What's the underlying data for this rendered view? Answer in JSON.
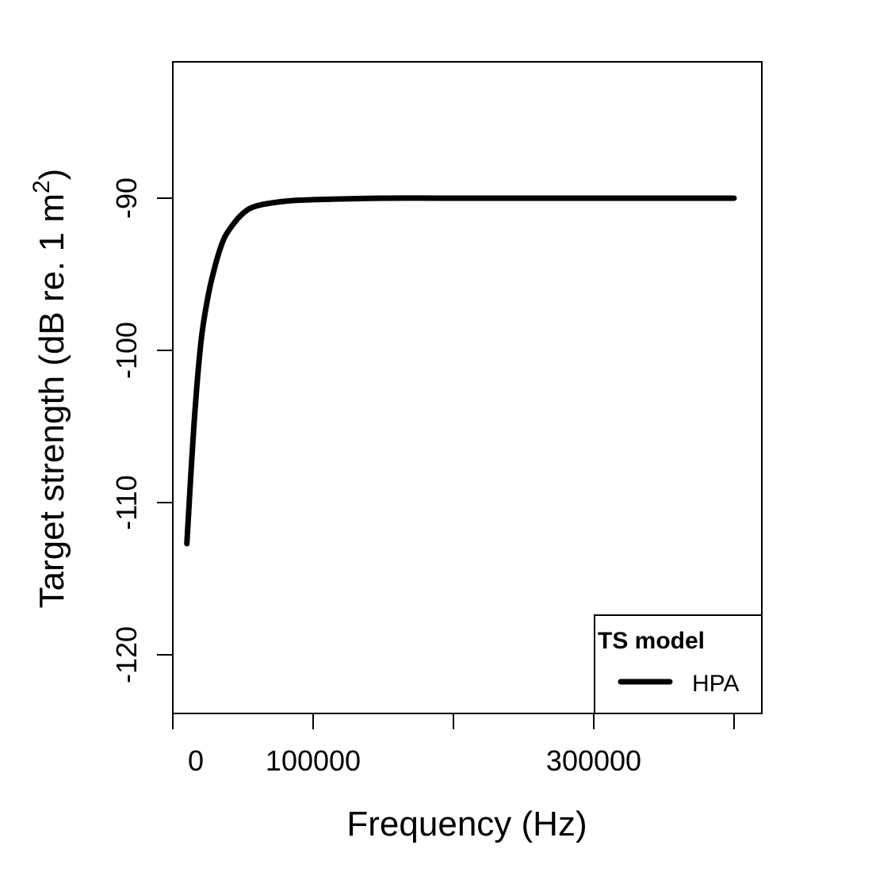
{
  "chart_data": {
    "type": "line",
    "title": "",
    "xlabel": "Frequency (Hz)",
    "ylabel": "Target strength (dB re. 1 m^2)",
    "ylabel_parts": {
      "main": "Target strength (dB re. 1 m",
      "sup": "2",
      "close": ")"
    },
    "xlim": [
      -1000,
      419000
    ],
    "ylim": [
      -123.85,
      -81.05
    ],
    "x_ticks": [
      0,
      100000,
      200000,
      300000,
      400000
    ],
    "x_tick_labels": [
      "0",
      "100000",
      "",
      "300000",
      ""
    ],
    "y_ticks": [
      -90,
      -100,
      -110,
      -120
    ],
    "y_tick_labels": [
      "-90",
      "-100",
      "-110",
      "-120"
    ],
    "grid": false,
    "legend": {
      "position": "bottom-right",
      "title": "TS model",
      "entries": [
        {
          "label": "HPA",
          "color": "#000000",
          "line_width": 6
        }
      ]
    },
    "series": [
      {
        "name": "HPA",
        "color": "#000000",
        "x": [
          10000,
          15000,
          20000,
          25000,
          30000,
          35000,
          40000,
          50000,
          60000,
          80000,
          100000,
          150000,
          200000,
          300000,
          400000
        ],
        "values": [
          -112.7,
          -105.0,
          -99.5,
          -96.5,
          -94.5,
          -93.0,
          -92.1,
          -91.0,
          -90.5,
          -90.2,
          -90.1,
          -90.0,
          -90.0,
          -90.0,
          -90.0
        ]
      }
    ]
  }
}
